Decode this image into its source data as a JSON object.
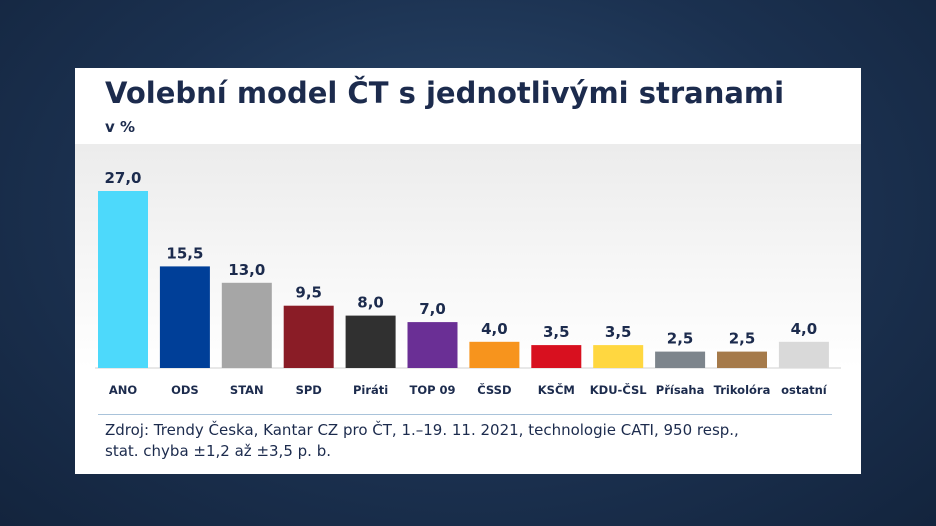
{
  "chart_data": {
    "type": "bar",
    "title": "Volební model ČT s jednotlivými stranami",
    "subtitle": "v %",
    "categories": [
      "ANO",
      "ODS",
      "STAN",
      "SPD",
      "Piráti",
      "TOP 09",
      "ČSSD",
      "KSČM",
      "KDU-ČSL",
      "Přísaha",
      "Trikolóra",
      "ostatní"
    ],
    "values": [
      27.0,
      15.5,
      13.0,
      9.5,
      8.0,
      7.0,
      4.0,
      3.5,
      3.5,
      2.5,
      2.5,
      4.0
    ],
    "value_labels": [
      "27,0",
      "15,5",
      "13,0",
      "9,5",
      "8,0",
      "7,0",
      "4,0",
      "3,5",
      "3,5",
      "2,5",
      "2,5",
      "4,0"
    ],
    "colors": [
      "#4dd9fb",
      "#003f98",
      "#a6a6a6",
      "#8a1c26",
      "#303030",
      "#6a2f95",
      "#f7941d",
      "#d8101f",
      "#ffd740",
      "#7d858c",
      "#a57a4a",
      "#d9d9d9"
    ],
    "ylim": [
      0,
      27
    ],
    "grid": false,
    "legend": "none"
  },
  "source": {
    "line1": "Zdroj: Trendy Česka, Kantar CZ pro ČT, 1.–19. 11. 2021, technologie CATI, 950 resp.,",
    "line2": "stat. chyba ±1,2 až ±3,5 p. b."
  }
}
